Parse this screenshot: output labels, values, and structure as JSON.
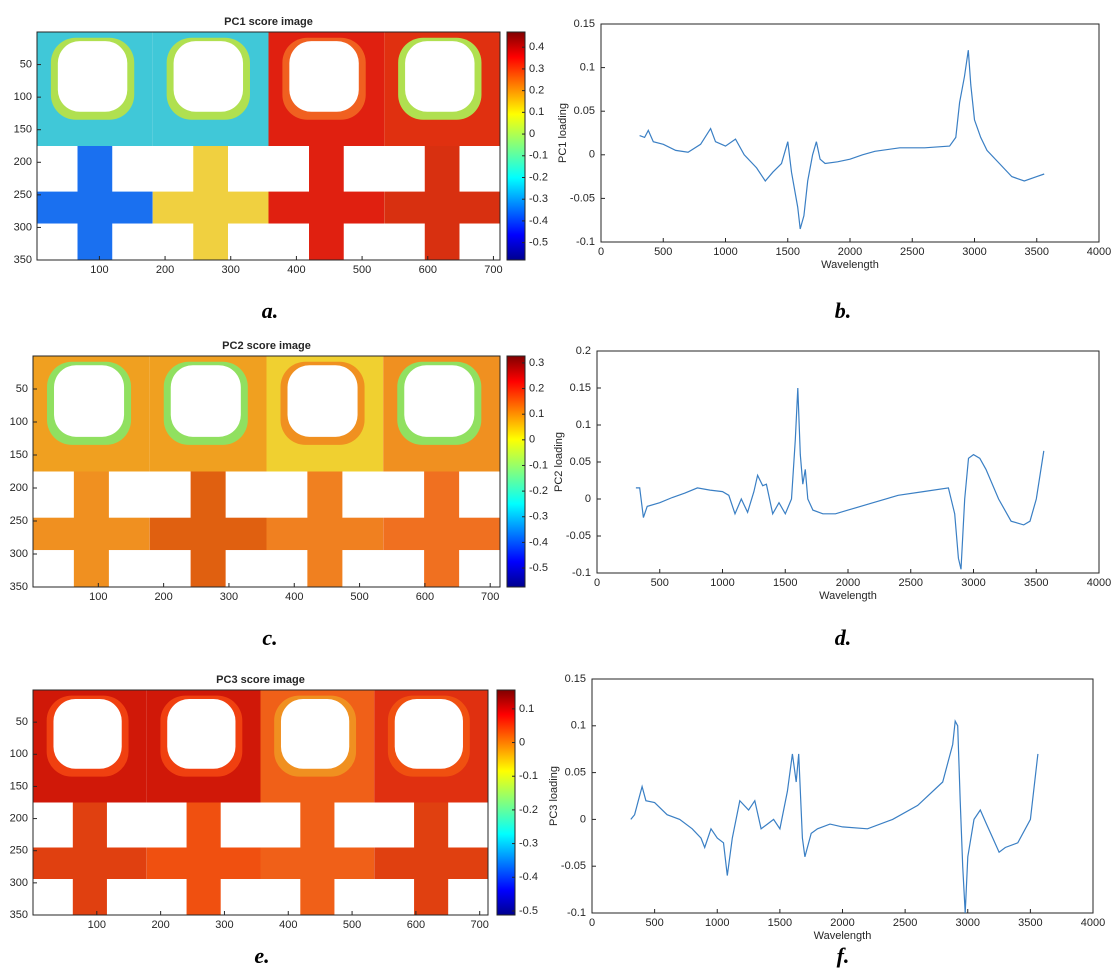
{
  "chart_data": [
    {
      "type": "image",
      "title": "PC1 score image",
      "caption": "a.",
      "colormap": "jet",
      "xlim": [
        5,
        710
      ],
      "xticks": [
        100,
        200,
        300,
        400,
        500,
        600,
        700
      ],
      "ylim": [
        0,
        350
      ],
      "y_reversed": true,
      "yticks": [
        50,
        100,
        150,
        200,
        250,
        300,
        350
      ],
      "clim": [
        -0.58,
        0.47
      ],
      "cticks": [
        0.4,
        0.3,
        0.2,
        0.1,
        0,
        -0.1,
        -0.2,
        -0.3,
        -0.4,
        -0.5
      ]
    },
    {
      "type": "line",
      "caption": "b.",
      "xlabel": "Wavelength",
      "ylabel": "PC1 loading",
      "color": "#3a7fc4",
      "xlim": [
        0,
        4000
      ],
      "xticks": [
        0,
        500,
        1000,
        1500,
        2000,
        2500,
        3000,
        3500,
        4000
      ],
      "ylim": [
        -0.1,
        0.15
      ],
      "yticks": [
        -0.1,
        -0.05,
        0,
        0.05,
        0.1,
        0.15
      ],
      "x": [
        310,
        350,
        380,
        420,
        500,
        600,
        700,
        800,
        880,
        920,
        1000,
        1080,
        1150,
        1250,
        1320,
        1380,
        1450,
        1500,
        1530,
        1580,
        1600,
        1630,
        1660,
        1700,
        1730,
        1760,
        1800,
        1900,
        2000,
        2100,
        2200,
        2400,
        2600,
        2800,
        2850,
        2880,
        2920,
        2950,
        2970,
        3000,
        3050,
        3100,
        3200,
        3300,
        3400,
        3500,
        3560
      ],
      "values": [
        0.022,
        0.02,
        0.028,
        0.015,
        0.012,
        0.005,
        0.003,
        0.012,
        0.03,
        0.015,
        0.01,
        0.018,
        0.0,
        -0.015,
        -0.03,
        -0.02,
        -0.01,
        0.015,
        -0.02,
        -0.06,
        -0.085,
        -0.07,
        -0.03,
        0.0,
        0.015,
        -0.005,
        -0.01,
        -0.008,
        -0.005,
        0.0,
        0.004,
        0.008,
        0.008,
        0.01,
        0.02,
        0.06,
        0.09,
        0.12,
        0.08,
        0.04,
        0.02,
        0.005,
        -0.01,
        -0.025,
        -0.03,
        -0.025,
        -0.022
      ]
    },
    {
      "type": "image",
      "title": "PC2 score image",
      "caption": "c.",
      "colormap": "jet",
      "xlim": [
        0,
        715
      ],
      "xticks": [
        100,
        200,
        300,
        400,
        500,
        600,
        700
      ],
      "ylim": [
        0,
        350
      ],
      "y_reversed": true,
      "yticks": [
        50,
        100,
        150,
        200,
        250,
        300,
        350
      ],
      "clim": [
        -0.574,
        0.327
      ],
      "cticks": [
        0.3,
        0.2,
        0.1,
        0,
        -0.1,
        -0.2,
        -0.3,
        -0.4,
        -0.5
      ]
    },
    {
      "type": "line",
      "caption": "d.",
      "xlabel": "Wavelength",
      "ylabel": "PC2 loading",
      "color": "#3a7fc4",
      "xlim": [
        0,
        4000
      ],
      "xticks": [
        0,
        500,
        1000,
        1500,
        2000,
        2500,
        3000,
        3500,
        4000
      ],
      "ylim": [
        -0.1,
        0.2
      ],
      "yticks": [
        -0.1,
        -0.05,
        0,
        0.05,
        0.1,
        0.15,
        0.2
      ],
      "x": [
        310,
        340,
        370,
        400,
        500,
        600,
        700,
        800,
        900,
        1000,
        1050,
        1100,
        1150,
        1200,
        1250,
        1280,
        1320,
        1350,
        1400,
        1450,
        1500,
        1550,
        1580,
        1600,
        1620,
        1640,
        1660,
        1680,
        1720,
        1800,
        1900,
        2000,
        2200,
        2400,
        2600,
        2800,
        2850,
        2880,
        2900,
        2930,
        2960,
        3000,
        3050,
        3100,
        3200,
        3300,
        3400,
        3450,
        3500,
        3560
      ],
      "values": [
        0.015,
        0.015,
        -0.025,
        -0.01,
        -0.005,
        0.002,
        0.008,
        0.015,
        0.012,
        0.01,
        0.005,
        -0.02,
        0.0,
        -0.018,
        0.01,
        0.032,
        0.018,
        0.02,
        -0.02,
        -0.005,
        -0.02,
        0.0,
        0.08,
        0.15,
        0.06,
        0.02,
        0.04,
        0.0,
        -0.015,
        -0.02,
        -0.02,
        -0.015,
        -0.005,
        0.005,
        0.01,
        0.015,
        -0.02,
        -0.08,
        -0.095,
        0.0,
        0.055,
        0.06,
        0.055,
        0.04,
        0.0,
        -0.03,
        -0.035,
        -0.03,
        0.0,
        0.065
      ]
    },
    {
      "type": "image",
      "title": "PC3 score image",
      "caption": "e.",
      "colormap": "jet",
      "xlim": [
        0,
        713
      ],
      "xticks": [
        100,
        200,
        300,
        400,
        500,
        600,
        700
      ],
      "ylim": [
        0,
        350
      ],
      "y_reversed": true,
      "yticks": [
        50,
        100,
        150,
        200,
        250,
        300,
        350
      ],
      "clim": [
        -0.512,
        0.156
      ],
      "cticks": [
        0.1,
        0,
        -0.1,
        -0.2,
        -0.3,
        -0.4,
        -0.5
      ]
    },
    {
      "type": "line",
      "caption": "f.",
      "xlabel": "Wavelength",
      "ylabel": "PC3 loading",
      "color": "#3a7fc4",
      "xlim": [
        0,
        4000
      ],
      "xticks": [
        0,
        500,
        1000,
        1500,
        2000,
        2500,
        3000,
        3500,
        4000
      ],
      "ylim": [
        -0.1,
        0.15
      ],
      "yticks": [
        -0.1,
        -0.05,
        0,
        0.05,
        0.1,
        0.15
      ],
      "x": [
        310,
        340,
        370,
        400,
        430,
        500,
        600,
        700,
        800,
        870,
        900,
        950,
        1000,
        1050,
        1080,
        1120,
        1180,
        1250,
        1300,
        1350,
        1400,
        1450,
        1500,
        1560,
        1600,
        1630,
        1650,
        1680,
        1700,
        1750,
        1800,
        1900,
        2000,
        2200,
        2400,
        2600,
        2800,
        2880,
        2900,
        2920,
        2940,
        2960,
        2980,
        3000,
        3050,
        3100,
        3150,
        3200,
        3250,
        3300,
        3400,
        3500,
        3560
      ],
      "values": [
        0.0,
        0.005,
        0.02,
        0.035,
        0.02,
        0.018,
        0.005,
        0.0,
        -0.01,
        -0.02,
        -0.03,
        -0.01,
        -0.02,
        -0.025,
        -0.06,
        -0.02,
        0.02,
        0.01,
        0.02,
        -0.01,
        -0.005,
        0.0,
        -0.01,
        0.03,
        0.07,
        0.04,
        0.07,
        -0.02,
        -0.04,
        -0.015,
        -0.01,
        -0.005,
        -0.008,
        -0.01,
        0.0,
        0.015,
        0.04,
        0.08,
        0.105,
        0.1,
        0.02,
        -0.05,
        -0.1,
        -0.04,
        0.0,
        0.01,
        -0.005,
        -0.02,
        -0.035,
        -0.03,
        -0.025,
        0.0,
        0.07
      ]
    }
  ]
}
